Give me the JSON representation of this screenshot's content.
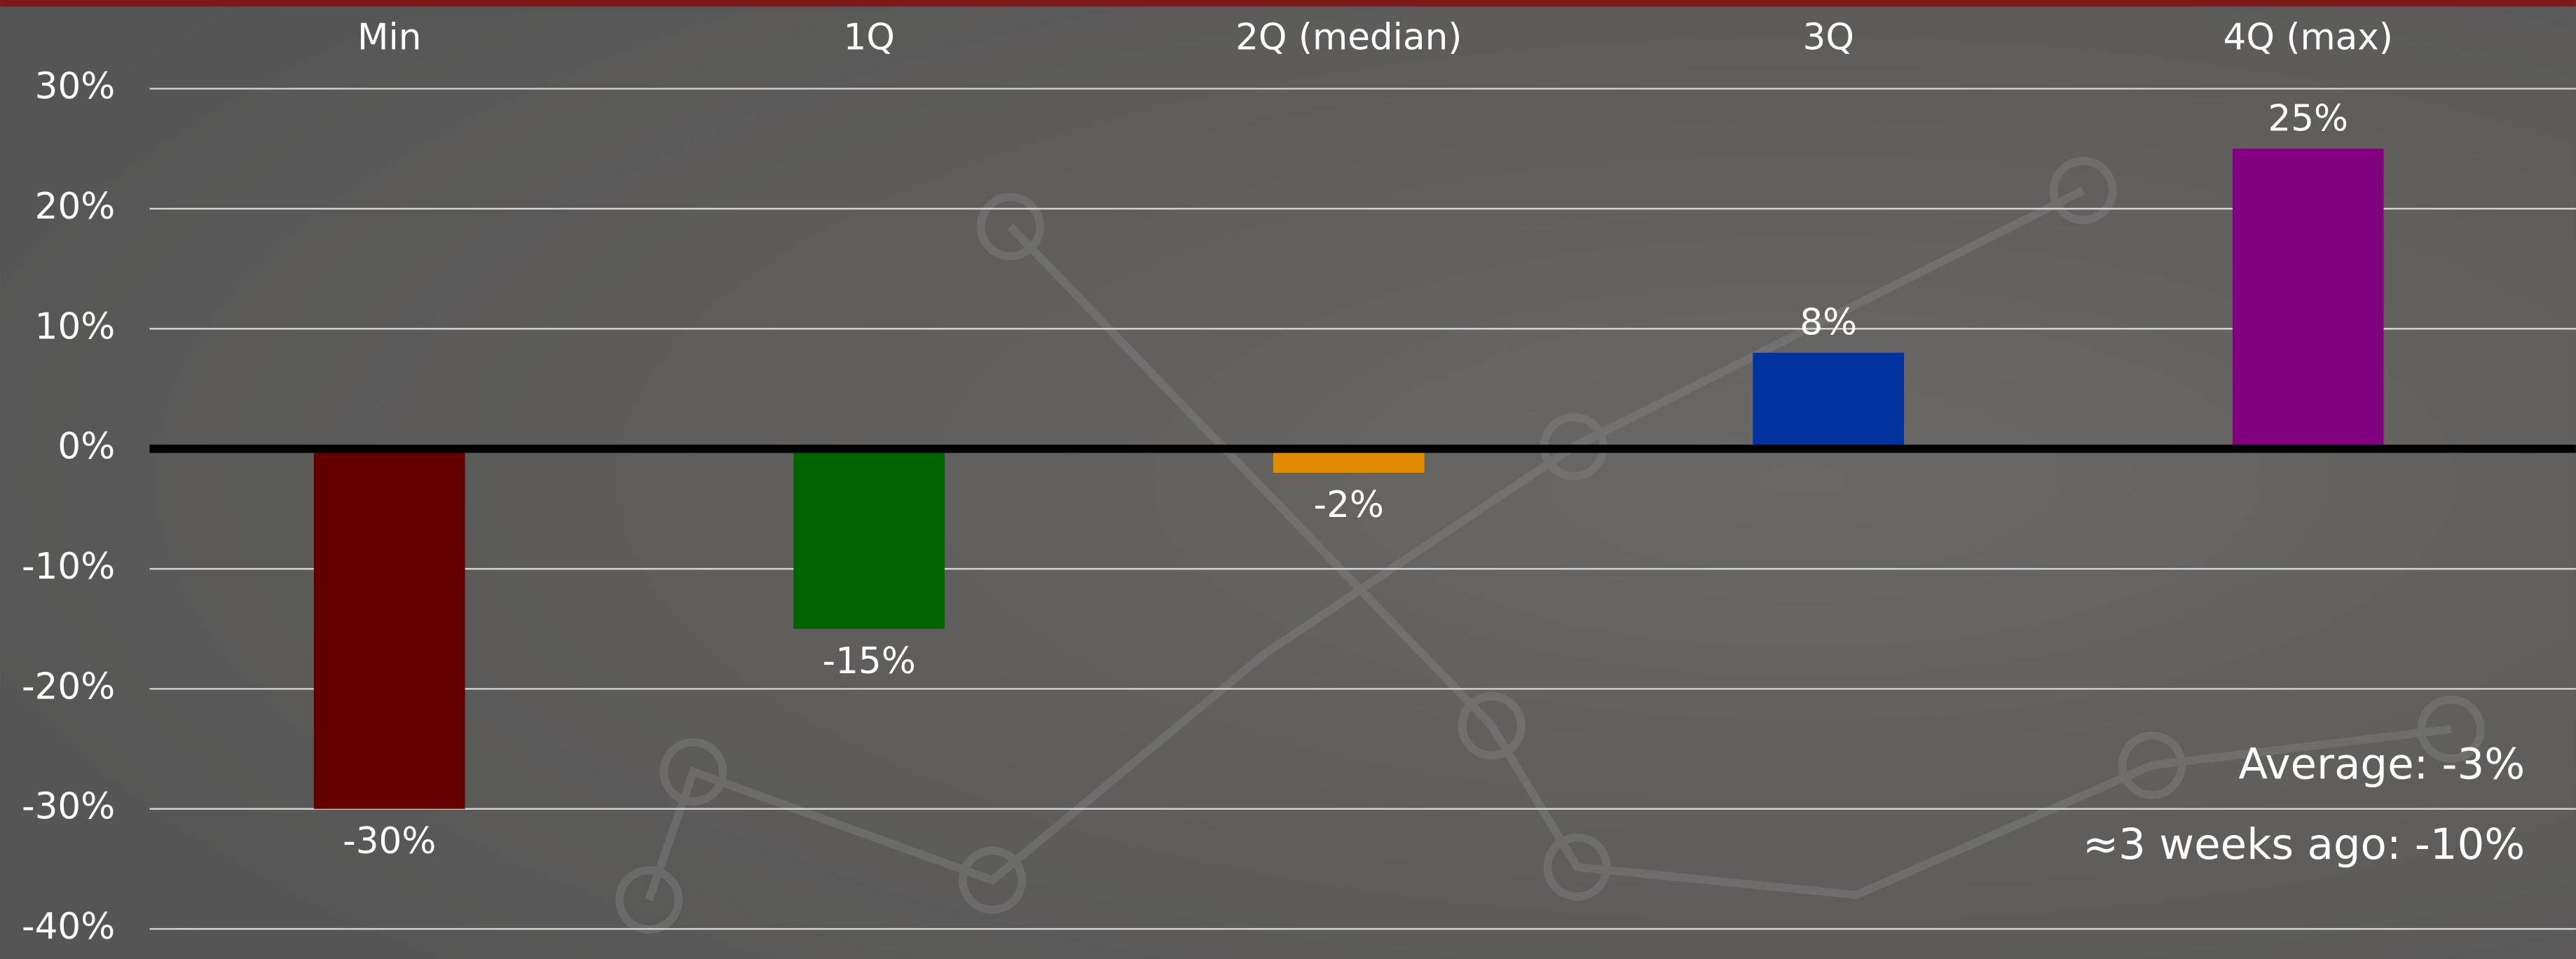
{
  "chart_data": {
    "type": "bar",
    "categories": [
      "Min",
      "1Q",
      "2Q (median)",
      "3Q",
      "4Q (max)"
    ],
    "values": [
      -30,
      -15,
      -2,
      8,
      25
    ],
    "value_labels": [
      "-30%",
      "-15%",
      "-2%",
      "8%",
      "25%"
    ],
    "colors": [
      "#620000",
      "#006400",
      "#e08a00",
      "#0033a0",
      "#800080"
    ],
    "ylim": [
      -42,
      32
    ],
    "yticks": [
      {
        "value": 30,
        "label": "30%"
      },
      {
        "value": 20,
        "label": "20%"
      },
      {
        "value": 10,
        "label": "10%"
      },
      {
        "value": 0,
        "label": "0%"
      },
      {
        "value": -10,
        "label": "-10%"
      },
      {
        "value": -20,
        "label": "-20%"
      },
      {
        "value": -30,
        "label": "-30%"
      },
      {
        "value": -40,
        "label": "-40%"
      }
    ],
    "grid": true,
    "annotations": [
      "Average: -3%",
      "≈3 weeks ago: -10%"
    ]
  }
}
